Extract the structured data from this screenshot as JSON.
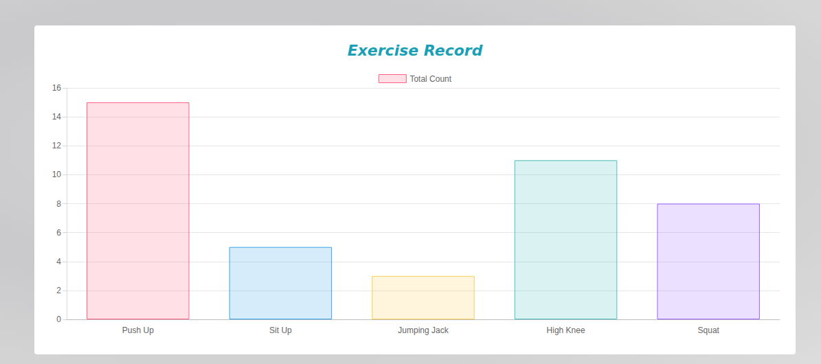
{
  "chart_data": {
    "type": "bar",
    "title": "Exercise Record",
    "categories": [
      "Push Up",
      "Sit Up",
      "Jumping Jack",
      "High Knee",
      "Squat"
    ],
    "series": [
      {
        "name": "Total Count",
        "values": [
          15,
          5,
          3,
          11,
          8
        ]
      }
    ],
    "colors": [
      "#ff6384",
      "#36a2eb",
      "#ffce56",
      "#4bc0c0",
      "#9966ff"
    ],
    "ylim": [
      0,
      16
    ],
    "yticks": [
      0,
      2,
      4,
      6,
      8,
      10,
      12,
      14,
      16
    ],
    "grid": true,
    "legend": "top"
  }
}
